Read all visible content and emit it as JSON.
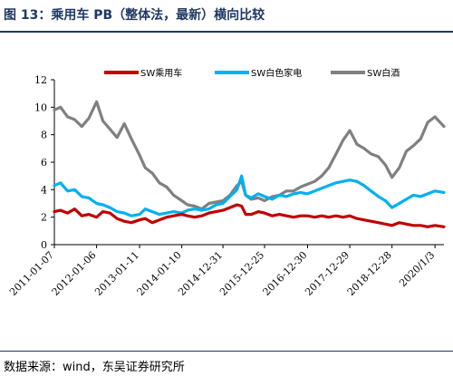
{
  "figure": {
    "title": "图 13：乘用车 PB（整体法，最新）横向比较",
    "source": "数据来源：wind，东吴证券研究所"
  },
  "chart_data": {
    "type": "line",
    "title": "",
    "xlabel": "",
    "ylabel": "",
    "ylim": [
      0,
      12
    ],
    "yticks": [
      "0",
      "2",
      "4",
      "6",
      "8",
      "10",
      "12"
    ],
    "xlim": [
      "2011-01-07",
      "2020-03-20"
    ],
    "x_tick_labels": [
      "2011-01-07",
      "2012-01-06",
      "2013-01-11",
      "2014-01-10",
      "2014-12-31",
      "2015-12-25",
      "2016-12-30",
      "2017-12-29",
      "2018-12-28",
      "2020/1/3"
    ],
    "grid": false,
    "legend_position": "top",
    "series": [
      {
        "name": "SW乘用车",
        "color": "#c00000",
        "x": [
          "2011-01-07",
          "2011-03-01",
          "2011-05-01",
          "2011-07-01",
          "2011-09-01",
          "2011-11-01",
          "2012-01-06",
          "2012-03-01",
          "2012-05-01",
          "2012-07-01",
          "2012-09-01",
          "2012-11-01",
          "2013-01-11",
          "2013-03-01",
          "2013-05-01",
          "2013-07-01",
          "2013-09-01",
          "2013-11-01",
          "2014-01-10",
          "2014-03-01",
          "2014-05-01",
          "2014-07-01",
          "2014-09-01",
          "2014-11-01",
          "2014-12-31",
          "2015-03-01",
          "2015-05-01",
          "2015-06-10",
          "2015-07-15",
          "2015-09-01",
          "2015-11-01",
          "2015-12-25",
          "2016-03-01",
          "2016-05-01",
          "2016-07-01",
          "2016-09-01",
          "2016-11-01",
          "2016-12-30",
          "2017-03-01",
          "2017-05-01",
          "2017-07-01",
          "2017-09-01",
          "2017-11-01",
          "2017-12-29",
          "2018-03-01",
          "2018-05-01",
          "2018-07-01",
          "2018-09-01",
          "2018-11-01",
          "2018-12-28",
          "2019-03-01",
          "2019-05-01",
          "2019-07-01",
          "2019-09-01",
          "2019-11-01",
          "2020-01-03",
          "2020-03-20"
        ],
        "y": [
          2.4,
          2.5,
          2.3,
          2.6,
          2.1,
          2.2,
          2.0,
          2.4,
          2.3,
          1.9,
          1.7,
          1.6,
          1.8,
          1.9,
          1.6,
          1.8,
          2.0,
          2.1,
          2.2,
          2.1,
          2.0,
          2.1,
          2.3,
          2.4,
          2.5,
          2.7,
          2.9,
          2.8,
          2.2,
          2.2,
          2.4,
          2.3,
          2.1,
          2.2,
          2.1,
          2.0,
          2.1,
          2.1,
          2.0,
          2.1,
          2.0,
          2.1,
          2.0,
          2.1,
          1.9,
          1.8,
          1.7,
          1.6,
          1.5,
          1.4,
          1.6,
          1.5,
          1.4,
          1.4,
          1.3,
          1.4,
          1.3
        ]
      },
      {
        "name": "SW白色家电",
        "color": "#00b0f0",
        "x": [
          "2011-01-07",
          "2011-03-01",
          "2011-05-01",
          "2011-07-01",
          "2011-09-01",
          "2011-11-01",
          "2012-01-06",
          "2012-03-01",
          "2012-05-01",
          "2012-07-01",
          "2012-09-01",
          "2012-11-01",
          "2013-01-11",
          "2013-03-01",
          "2013-05-01",
          "2013-07-01",
          "2013-09-01",
          "2013-11-01",
          "2014-01-10",
          "2014-03-01",
          "2014-05-01",
          "2014-07-01",
          "2014-09-01",
          "2014-11-01",
          "2014-12-31",
          "2015-03-01",
          "2015-05-01",
          "2015-06-10",
          "2015-07-15",
          "2015-09-01",
          "2015-11-01",
          "2015-12-25",
          "2016-03-01",
          "2016-05-01",
          "2016-07-01",
          "2016-09-01",
          "2016-11-01",
          "2016-12-30",
          "2017-03-01",
          "2017-05-01",
          "2017-07-01",
          "2017-09-01",
          "2017-11-01",
          "2017-12-29",
          "2018-03-01",
          "2018-05-01",
          "2018-07-01",
          "2018-09-01",
          "2018-11-01",
          "2018-12-28",
          "2019-03-01",
          "2019-05-01",
          "2019-07-01",
          "2019-09-01",
          "2019-11-01",
          "2020-01-03",
          "2020-03-20"
        ],
        "y": [
          4.3,
          4.5,
          3.9,
          4.0,
          3.5,
          3.4,
          3.0,
          2.9,
          2.7,
          2.4,
          2.3,
          2.1,
          2.2,
          2.6,
          2.4,
          2.2,
          2.3,
          2.4,
          2.3,
          2.5,
          2.6,
          2.5,
          2.6,
          2.9,
          3.0,
          3.5,
          4.0,
          5.0,
          3.6,
          3.4,
          3.7,
          3.5,
          3.3,
          3.6,
          3.5,
          3.7,
          3.8,
          3.7,
          3.9,
          4.1,
          4.3,
          4.5,
          4.6,
          4.7,
          4.6,
          4.3,
          3.9,
          3.5,
          3.2,
          2.7,
          3.0,
          3.3,
          3.6,
          3.5,
          3.7,
          3.9,
          3.8
        ]
      },
      {
        "name": "SW白酒",
        "color": "#808080",
        "x": [
          "2011-01-07",
          "2011-03-01",
          "2011-05-01",
          "2011-07-01",
          "2011-09-01",
          "2011-11-01",
          "2012-01-06",
          "2012-03-01",
          "2012-05-01",
          "2012-07-01",
          "2012-09-01",
          "2012-11-01",
          "2013-01-11",
          "2013-03-01",
          "2013-05-01",
          "2013-07-01",
          "2013-09-01",
          "2013-11-01",
          "2014-01-10",
          "2014-03-01",
          "2014-05-01",
          "2014-07-01",
          "2014-09-01",
          "2014-11-01",
          "2014-12-31",
          "2015-03-01",
          "2015-05-01",
          "2015-06-10",
          "2015-07-15",
          "2015-09-01",
          "2015-11-01",
          "2015-12-25",
          "2016-03-01",
          "2016-05-01",
          "2016-07-01",
          "2016-09-01",
          "2016-11-01",
          "2016-12-30",
          "2017-03-01",
          "2017-05-01",
          "2017-07-01",
          "2017-09-01",
          "2017-11-01",
          "2017-12-29",
          "2018-03-01",
          "2018-05-01",
          "2018-07-01",
          "2018-09-01",
          "2018-11-01",
          "2018-12-28",
          "2019-03-01",
          "2019-05-01",
          "2019-07-01",
          "2019-09-01",
          "2019-11-01",
          "2020-01-03",
          "2020-03-20"
        ],
        "y": [
          9.8,
          10.0,
          9.3,
          9.1,
          8.6,
          9.2,
          10.4,
          9.0,
          8.4,
          7.8,
          8.8,
          7.7,
          6.5,
          5.6,
          5.2,
          4.5,
          4.2,
          3.6,
          3.2,
          2.9,
          2.8,
          2.6,
          3.0,
          3.1,
          3.2,
          3.6,
          4.3,
          4.6,
          3.6,
          3.3,
          3.4,
          3.2,
          3.5,
          3.6,
          3.9,
          3.9,
          4.2,
          4.4,
          4.6,
          5.0,
          5.6,
          6.6,
          7.6,
          8.3,
          7.3,
          7.0,
          6.6,
          6.4,
          5.8,
          4.9,
          5.6,
          6.8,
          7.2,
          7.7,
          8.9,
          9.3,
          8.6
        ]
      }
    ]
  }
}
